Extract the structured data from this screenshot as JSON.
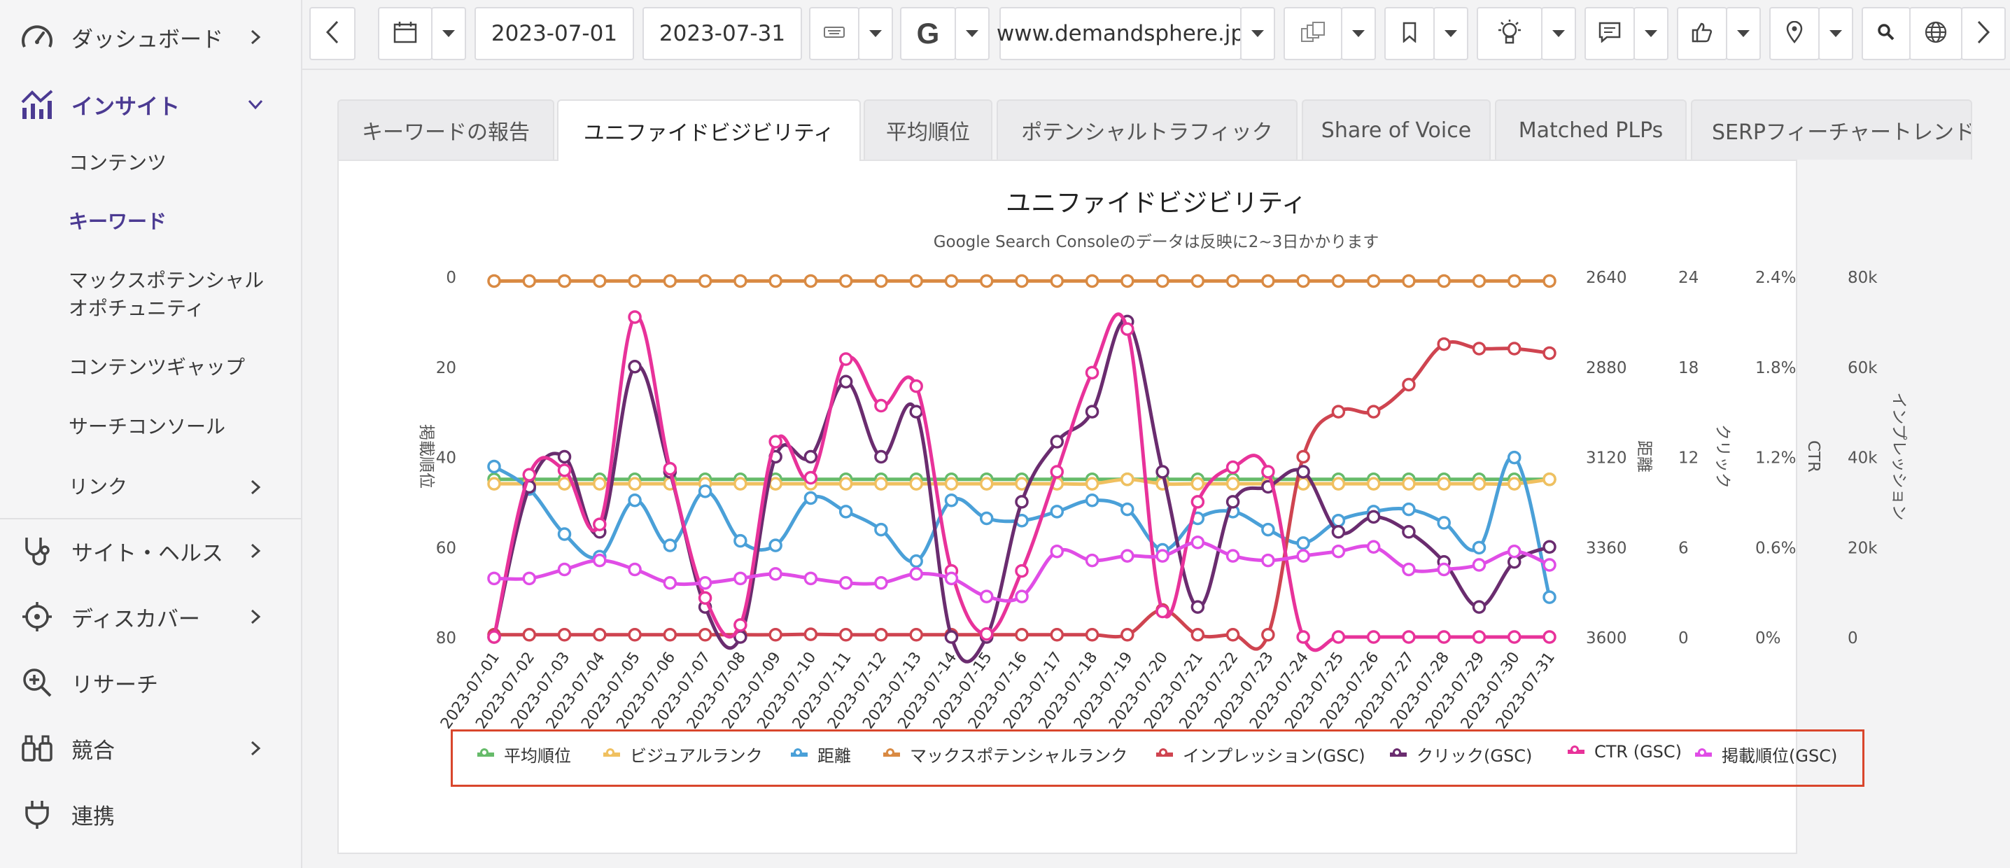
{
  "sidebar": {
    "items": [
      {
        "label": "ダッシュボード",
        "icon": "gauge-icon"
      },
      {
        "label": "インサイト",
        "icon": "insight-chart-icon"
      },
      {
        "label": "サイト・ヘルス",
        "icon": "stethoscope-icon"
      },
      {
        "label": "ディスカバー",
        "icon": "crosshair-icon"
      },
      {
        "label": "リサーチ",
        "icon": "zoom-in-icon"
      },
      {
        "label": "競合",
        "icon": "binoculars-icon"
      },
      {
        "label": "連携",
        "icon": "plug-icon"
      }
    ],
    "insight_sub": [
      {
        "label": "コンテンツ"
      },
      {
        "label": "キーワード"
      },
      {
        "label": "マックスポテンシャル\nオポチュニティ"
      },
      {
        "label": "コンテンツギャップ"
      },
      {
        "label": "サーチコンソール"
      },
      {
        "label": "リンク"
      }
    ]
  },
  "toolbar": {
    "start_date": "2023-07-01",
    "end_date": "2023-07-31",
    "search_engine": "G",
    "domain": "www.demandsphere.jp"
  },
  "tabs": [
    {
      "label": "キーワードの報告"
    },
    {
      "label": "ユニファイドビジビリティ"
    },
    {
      "label": "平均順位"
    },
    {
      "label": "ポテンシャルトラフィック"
    },
    {
      "label": "Share of Voice"
    },
    {
      "label": "Matched PLPs"
    },
    {
      "label": "SERPフィーチャートレンド"
    }
  ],
  "chart_data": {
    "type": "line",
    "title": "ユニファイドビジビリティ",
    "subtitle": "Google Search Consoleのデータは反映に2~3日かかります",
    "x": [
      "2023-07-01",
      "2023-07-02",
      "2023-07-03",
      "2023-07-04",
      "2023-07-05",
      "2023-07-06",
      "2023-07-07",
      "2023-07-08",
      "2023-07-09",
      "2023-07-10",
      "2023-07-11",
      "2023-07-12",
      "2023-07-13",
      "2023-07-14",
      "2023-07-15",
      "2023-07-16",
      "2023-07-17",
      "2023-07-18",
      "2023-07-19",
      "2023-07-20",
      "2023-07-21",
      "2023-07-22",
      "2023-07-23",
      "2023-07-24",
      "2023-07-25",
      "2023-07-26",
      "2023-07-27",
      "2023-07-28",
      "2023-07-29",
      "2023-07-30",
      "2023-07-31"
    ],
    "axes": {
      "rank": {
        "label": "掲載順位",
        "ticks": [
          "0",
          "20",
          "40",
          "60",
          "80"
        ],
        "range": [
          0,
          80
        ],
        "reversed": true
      },
      "distance": {
        "label": "距離",
        "ticks": [
          "2640",
          "2880",
          "3120",
          "3360",
          "3600"
        ],
        "range": [
          2640,
          3600
        ],
        "reversed": true
      },
      "clicks": {
        "label": "クリック",
        "ticks": [
          "24",
          "18",
          "12",
          "6",
          "0"
        ],
        "range": [
          0,
          24
        ]
      },
      "ctr": {
        "label": "CTR",
        "ticks": [
          "2.4%",
          "1.8%",
          "1.2%",
          "0.6%",
          "0%"
        ],
        "range": [
          0,
          2.4
        ]
      },
      "impressions": {
        "label": "インプレッション",
        "ticks": [
          "80k",
          "60k",
          "40k",
          "20k",
          "0"
        ],
        "range": [
          0,
          80000
        ]
      }
    },
    "series": [
      {
        "name": "平均順位",
        "color": "#66bb6a",
        "axis": "rank",
        "values": [
          45,
          45,
          45,
          45,
          45,
          45,
          45,
          45,
          45,
          45,
          45,
          45,
          45,
          45,
          45,
          45,
          45,
          45,
          45,
          45,
          45,
          45,
          45,
          45,
          45,
          45,
          45,
          45,
          45,
          45,
          45
        ]
      },
      {
        "name": "ビジュアルランク",
        "color": "#f0c060",
        "axis": "rank",
        "values": [
          46,
          46,
          46,
          46,
          46,
          46,
          46,
          46,
          46,
          46,
          46,
          46,
          46,
          46,
          46,
          46,
          46,
          46,
          45,
          46,
          46,
          46,
          46,
          46,
          46,
          46,
          46,
          46,
          46,
          46,
          45
        ]
      },
      {
        "name": "距離",
        "color": "#4aa0d8",
        "axis": "distance",
        "values": [
          3146,
          3206,
          3326,
          3386,
          3236,
          3356,
          3212,
          3344,
          3356,
          3230,
          3266,
          3314,
          3398,
          3236,
          3284,
          3290,
          3266,
          3236,
          3260,
          3368,
          3284,
          3266,
          3314,
          3350,
          3290,
          3266,
          3260,
          3296,
          3362,
          3122,
          3494
        ]
      },
      {
        "name": "マックスポテンシャルランク",
        "color": "#d98a43",
        "axis": "rank",
        "values": [
          1,
          1,
          1,
          1,
          1,
          1,
          1,
          1,
          1,
          1,
          1,
          1,
          1,
          1,
          1,
          1,
          1,
          1,
          1,
          1,
          1,
          1,
          1,
          1,
          1,
          1,
          1,
          1,
          1,
          1,
          1
        ]
      },
      {
        "name": "インプレッション(GSC)",
        "color": "#cf4450",
        "axis": "impressions",
        "values": [
          500,
          500,
          500,
          500,
          500,
          500,
          500,
          500,
          500,
          600,
          500,
          500,
          500,
          500,
          500,
          500,
          500,
          500,
          500,
          6000,
          500,
          500,
          500,
          40000,
          50000,
          50000,
          56000,
          65000,
          64000,
          64000,
          63000
        ]
      },
      {
        "name": "クリック(GSC)",
        "color": "#6a2c6f",
        "axis": "clicks",
        "values": [
          0,
          10,
          12,
          7,
          18,
          11,
          2,
          0,
          12,
          12,
          17,
          12,
          15,
          0,
          0,
          9,
          13,
          15,
          21,
          11,
          2,
          9,
          10,
          11,
          7,
          8,
          7,
          5,
          2,
          5,
          6
        ]
      },
      {
        "name": "CTR (GSC)",
        "color": "#e8329a",
        "axis": "ctr",
        "values": [
          0,
          1.08,
          1.11,
          0.75,
          2.13,
          1.12,
          0.26,
          0.08,
          1.3,
          1.06,
          1.85,
          1.54,
          1.67,
          0.44,
          0.02,
          0.44,
          1.1,
          1.76,
          2.05,
          0.17,
          0.9,
          1.13,
          1.1,
          0,
          0,
          0,
          0,
          0,
          0,
          0,
          0
        ]
      },
      {
        "name": "掲載順位(GSC)",
        "color": "#e04de6",
        "axis": "rank",
        "values": [
          67,
          67,
          65,
          63,
          65,
          68,
          68,
          67,
          66,
          67,
          68,
          68,
          66,
          67,
          71,
          71,
          61,
          63,
          62,
          62,
          59,
          62,
          63,
          62,
          61,
          60,
          65,
          65,
          64,
          61,
          64
        ]
      }
    ],
    "legend_position": "bottom"
  }
}
